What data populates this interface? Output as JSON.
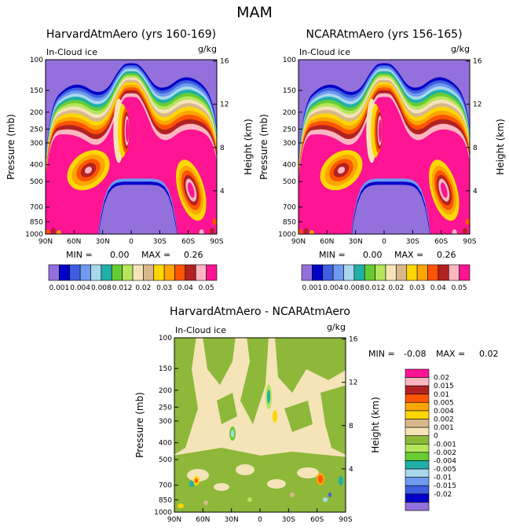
{
  "figure_title": "MAM",
  "chart_data": [
    {
      "type": "heatmap",
      "title": "HarvardAtmAero (yrs 160-169)",
      "field_label": "In-Cloud ice",
      "units": "g/kg",
      "ylabel": "Pressure (mb)",
      "y2label": "Height (km)",
      "xticks": [
        "90N",
        "60N",
        "30N",
        "0",
        "30S",
        "60S",
        "90S"
      ],
      "yticks": [
        100,
        150,
        200,
        250,
        300,
        400,
        500,
        700,
        850,
        1000
      ],
      "y2ticks": [
        16,
        12,
        8,
        4
      ],
      "ylim": [
        1000,
        100
      ],
      "stats": {
        "min_label": "MIN =",
        "min": "0.00",
        "max_label": "MAX =",
        "max": "0.26"
      },
      "colorbar": {
        "colors": [
          "#9370DB",
          "#0000C8",
          "#3F5FE0",
          "#6E9AF0",
          "#A8D8EE",
          "#20B0A8",
          "#66CC33",
          "#B5E55A",
          "#F5E4B8",
          "#D8B88A",
          "#FFD700",
          "#FFA500",
          "#FF5500",
          "#B22222",
          "#FFB6C1",
          "#FF1493"
        ],
        "labels": [
          "0.001",
          "0.004",
          "0.008",
          "0.012",
          "0.02",
          "0.03",
          "0.04",
          "0.05"
        ]
      }
    },
    {
      "type": "heatmap",
      "title": "NCARAtmAero (yrs 156-165)",
      "field_label": "In-Cloud ice",
      "units": "g/kg",
      "ylabel": "Pressure (mb)",
      "y2label": "Height (km)",
      "xticks": [
        "90N",
        "60N",
        "30N",
        "0",
        "30S",
        "60S",
        "90S"
      ],
      "yticks": [
        100,
        150,
        200,
        250,
        300,
        400,
        500,
        700,
        850,
        1000
      ],
      "y2ticks": [
        16,
        12,
        8,
        4
      ],
      "ylim": [
        1000,
        100
      ],
      "stats": {
        "min_label": "MIN =",
        "min": "0.00",
        "max_label": "MAX =",
        "max": "0.26"
      },
      "colorbar": {
        "colors": [
          "#9370DB",
          "#0000C8",
          "#3F5FE0",
          "#6E9AF0",
          "#A8D8EE",
          "#20B0A8",
          "#66CC33",
          "#B5E55A",
          "#F5E4B8",
          "#D8B88A",
          "#FFD700",
          "#FFA500",
          "#FF5500",
          "#B22222",
          "#FFB6C1",
          "#FF1493"
        ],
        "labels": [
          "0.001",
          "0.004",
          "0.008",
          "0.012",
          "0.02",
          "0.03",
          "0.04",
          "0.05"
        ]
      }
    },
    {
      "type": "heatmap",
      "title": "HarvardAtmAero - NCARAtmAero",
      "field_label": "In-Cloud ice",
      "units": "g/kg",
      "ylabel": "Pressure (mb)",
      "y2label": "Height (km)",
      "xticks": [
        "90N",
        "60N",
        "30N",
        "0",
        "30S",
        "60S",
        "90S"
      ],
      "yticks": [
        100,
        150,
        200,
        250,
        300,
        400,
        500,
        700,
        850,
        1000
      ],
      "y2ticks": [
        16,
        12,
        8,
        4
      ],
      "ylim": [
        1000,
        100
      ],
      "stats": {
        "min_label": "MIN =",
        "min": "-0.08",
        "max_label": "MAX =",
        "max": "0.02"
      },
      "colorbar": {
        "colors": [
          "#FF1493",
          "#FFB6C1",
          "#B22222",
          "#FF5500",
          "#FFA500",
          "#FFD700",
          "#D8B88A",
          "#F5E4B8",
          "#8DB83A",
          "#B5E55A",
          "#66CC33",
          "#20B0A8",
          "#A8D8EE",
          "#6E9AF0",
          "#3F5FE0",
          "#0000C8",
          "#9370DB"
        ],
        "labels": [
          "0.02",
          "0.015",
          "0.01",
          "0.005",
          "0.004",
          "0.002",
          "0.001",
          "0",
          "-0.001",
          "-0.002",
          "-0.004",
          "-0.005",
          "-0.01",
          "-0.015",
          "-0.02"
        ]
      }
    }
  ]
}
